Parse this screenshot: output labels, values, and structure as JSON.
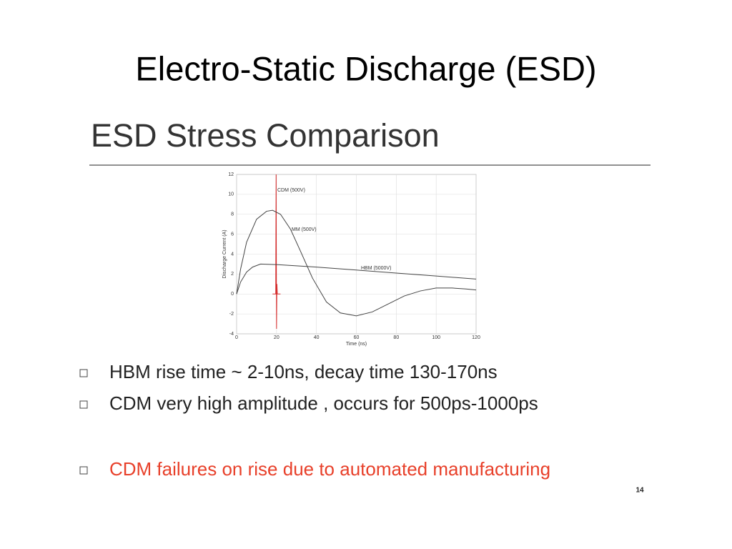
{
  "title": "Electro-Static Discharge (ESD)",
  "subtitle": "ESD Stress Comparison",
  "chart_data": {
    "type": "line",
    "xlabel": "Time (ns)",
    "ylabel": "Discharge Current (A)",
    "xlim": [
      0,
      120
    ],
    "xticks": [
      0,
      20,
      40,
      60,
      80,
      100,
      120
    ],
    "ylim": [
      -4,
      12
    ],
    "yticks": [
      -4,
      -2,
      0,
      2,
      4,
      6,
      8,
      10,
      12
    ],
    "grid": true,
    "series": [
      {
        "name": "CDM (500V)",
        "color": "#d42a2a",
        "x": [
          18,
          19.6,
          19.8,
          20.0,
          20.2,
          20.4,
          22
        ],
        "values": [
          0,
          0,
          12,
          -3.5,
          1,
          0,
          0
        ]
      },
      {
        "name": "MM (500V)",
        "color": "#444444",
        "x": [
          0,
          2,
          5,
          10,
          15,
          18,
          22,
          27,
          32,
          38,
          45,
          52,
          60,
          68,
          76,
          84,
          92,
          100,
          108,
          115,
          120
        ],
        "values": [
          0,
          2.5,
          5.2,
          7.5,
          8.3,
          8.4,
          8.0,
          6.5,
          4.3,
          1.6,
          -0.8,
          -1.9,
          -2.2,
          -1.8,
          -1.0,
          -0.2,
          0.3,
          0.6,
          0.6,
          0.5,
          0.4
        ]
      },
      {
        "name": "HBM (5000V)",
        "color": "#444444",
        "x": [
          0,
          2,
          5,
          8,
          12,
          20,
          40,
          60,
          80,
          100,
          120
        ],
        "values": [
          0,
          1.2,
          2.2,
          2.7,
          3.0,
          2.95,
          2.7,
          2.4,
          2.1,
          1.8,
          1.5
        ]
      }
    ]
  },
  "bullets": [
    {
      "text": "HBM rise time ~ 2-10ns, decay time 130-170ns",
      "color": "#222222"
    },
    {
      "text": "CDM very high amplitude , occurs for 500ps-1000ps",
      "color": "#222222"
    },
    {
      "text": "CDM failures on rise due to automated manufacturing",
      "color": "#e8402a"
    }
  ],
  "page_number": "14"
}
